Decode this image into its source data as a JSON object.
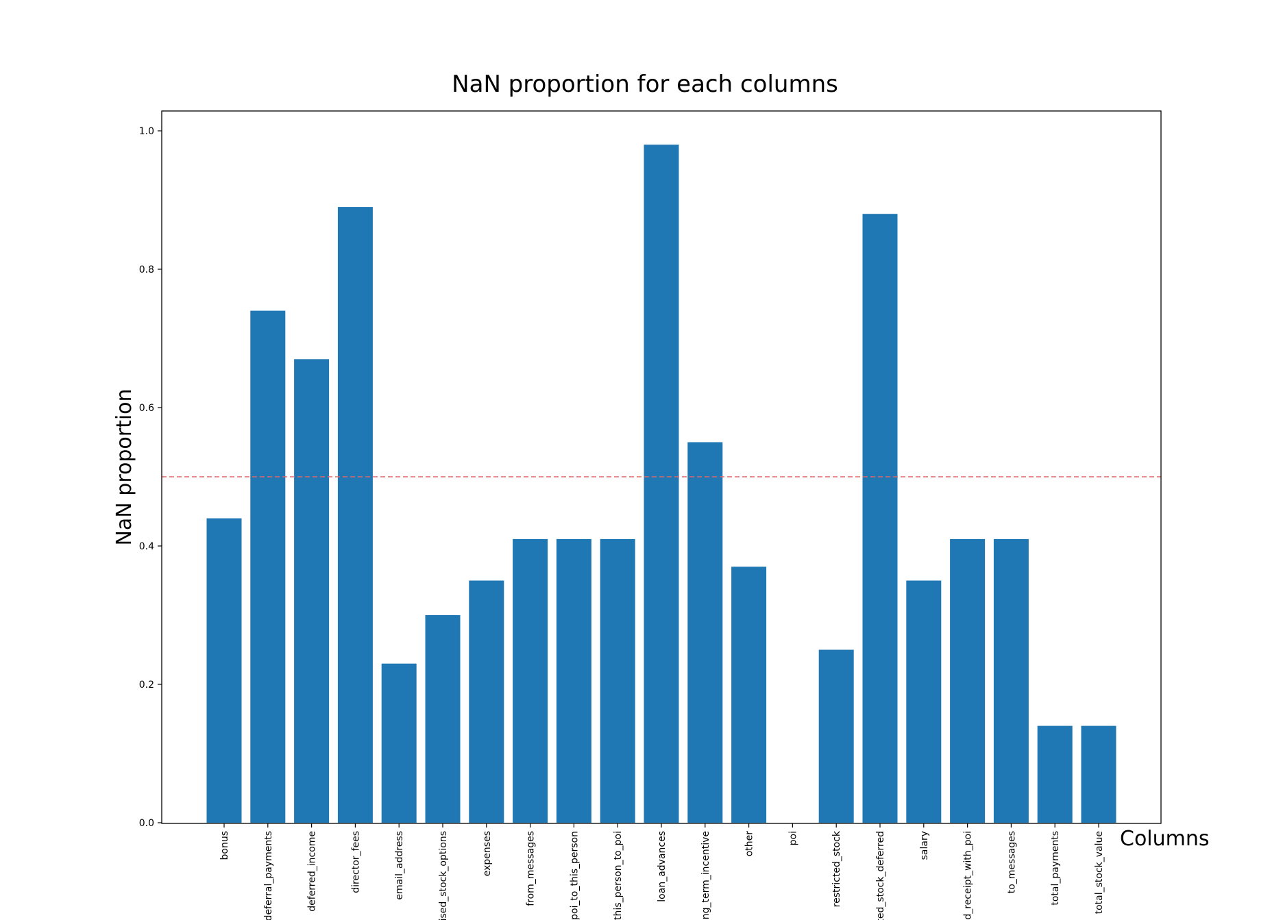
{
  "chart_data": {
    "type": "bar",
    "title": "NaN proportion for each columns",
    "xlabel": "Columns",
    "ylabel": "NaN proportion",
    "ylim": [
      0,
      1.03
    ],
    "yticks": [
      0.0,
      0.2,
      0.4,
      0.6,
      0.8,
      1.0
    ],
    "ytick_labels": [
      "0.0",
      "0.2",
      "0.4",
      "0.6",
      "0.8",
      "1.0"
    ],
    "categories": [
      "bonus",
      "deferral_payments",
      "deferred_income",
      "director_fees",
      "email_address",
      "cised_stock_options",
      "expenses",
      "from_messages",
      "_poi_to_this_person",
      "_this_person_to_poi",
      "loan_advances",
      "ong_term_incentive",
      "other",
      "poi",
      "restricted_stock",
      "ted_stock_deferred",
      "salary",
      "ed_receipt_with_poi",
      "to_messages",
      "total_payments",
      "total_stock_value"
    ],
    "values": [
      0.44,
      0.74,
      0.67,
      0.89,
      0.23,
      0.3,
      0.35,
      0.41,
      0.41,
      0.41,
      0.98,
      0.55,
      0.37,
      0.0,
      0.25,
      0.88,
      0.35,
      0.41,
      0.41,
      0.14,
      0.14
    ],
    "bar_color": "#1f77b4",
    "reference_line": {
      "y": 0.5,
      "color": "#e06666",
      "style": "dashed"
    },
    "grid": false,
    "legend": "none"
  }
}
